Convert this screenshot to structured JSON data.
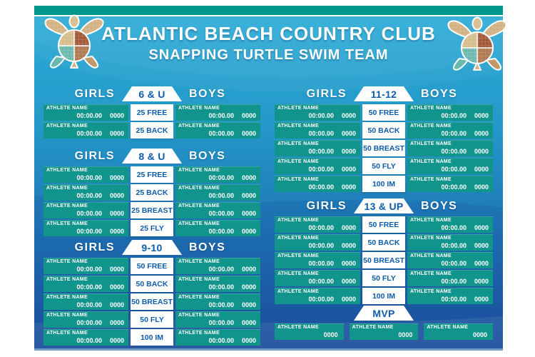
{
  "header": {
    "title": "ATLANTIC BEACH COUNTRY CLUB",
    "subtitle": "SNAPPING TURTLE SWIM TEAM",
    "logo_left": "sea-turtle-mosaic",
    "logo_right": "sea-turtle-mosaic"
  },
  "colors": {
    "top_strip": "#00968e",
    "background_top": "#2cabd6",
    "background_bottom": "#1d509f",
    "record_slot_teal": "#11948c",
    "event_text_blue": "#0d5cac",
    "header_text": "#ffffff"
  },
  "sections": [
    {
      "age_label": "6 & U",
      "girls_label": "GIRLS",
      "boys_label": "BOYS",
      "rows": [
        {
          "event": "25 FREE",
          "girls": {
            "name": "ATHLETE NAME",
            "time": "00:00.00",
            "year": "0000"
          },
          "boys": {
            "name": "ATHLETE NAME",
            "time": "00:00.00",
            "year": "0000"
          }
        },
        {
          "event": "25 BACK",
          "girls": {
            "name": "ATHLETE NAME",
            "time": "00:00.00",
            "year": "0000"
          },
          "boys": {
            "name": "ATHLETE NAME",
            "time": "00:00.00",
            "year": "0000"
          }
        }
      ]
    },
    {
      "age_label": "8 & U",
      "girls_label": "GIRLS",
      "boys_label": "BOYS",
      "rows": [
        {
          "event": "25 FREE",
          "girls": {
            "name": "ATHLETE NAME",
            "time": "00:00.00",
            "year": "0000"
          },
          "boys": {
            "name": "ATHLETE NAME",
            "time": "00:00.00",
            "year": "0000"
          }
        },
        {
          "event": "25 BACK",
          "girls": {
            "name": "ATHLETE NAME",
            "time": "00:00.00",
            "year": "0000"
          },
          "boys": {
            "name": "ATHLETE NAME",
            "time": "00:00.00",
            "year": "0000"
          }
        },
        {
          "event": "25 BREAST",
          "girls": {
            "name": "ATHLETE NAME",
            "time": "00:00.00",
            "year": "0000"
          },
          "boys": {
            "name": "ATHLETE NAME",
            "time": "00:00.00",
            "year": "0000"
          }
        },
        {
          "event": "25 FLY",
          "girls": {
            "name": "ATHLETE NAME",
            "time": "00:00.00",
            "year": "0000"
          },
          "boys": {
            "name": "ATHLETE NAME",
            "time": "00:00.00",
            "year": "0000"
          }
        }
      ]
    },
    {
      "age_label": "9-10",
      "girls_label": "GIRLS",
      "boys_label": "BOYS",
      "rows": [
        {
          "event": "50 FREE",
          "girls": {
            "name": "ATHLETE NAME",
            "time": "00:00.00",
            "year": "0000"
          },
          "boys": {
            "name": "ATHLETE NAME",
            "time": "00:00.00",
            "year": "0000"
          }
        },
        {
          "event": "50 BACK",
          "girls": {
            "name": "ATHLETE NAME",
            "time": "00:00.00",
            "year": "0000"
          },
          "boys": {
            "name": "ATHLETE NAME",
            "time": "00:00.00",
            "year": "0000"
          }
        },
        {
          "event": "50 BREAST",
          "girls": {
            "name": "ATHLETE NAME",
            "time": "00:00.00",
            "year": "0000"
          },
          "boys": {
            "name": "ATHLETE NAME",
            "time": "00:00.00",
            "year": "0000"
          }
        },
        {
          "event": "50 FLY",
          "girls": {
            "name": "ATHLETE NAME",
            "time": "00:00.00",
            "year": "0000"
          },
          "boys": {
            "name": "ATHLETE NAME",
            "time": "00:00.00",
            "year": "0000"
          }
        },
        {
          "event": "100 IM",
          "girls": {
            "name": "ATHLETE NAME",
            "time": "00:00.00",
            "year": "0000"
          },
          "boys": {
            "name": "ATHLETE NAME",
            "time": "00:00.00",
            "year": "0000"
          }
        }
      ]
    },
    {
      "age_label": "11-12",
      "girls_label": "GIRLS",
      "boys_label": "BOYS",
      "rows": [
        {
          "event": "50 FREE",
          "girls": {
            "name": "ATHLETE NAME",
            "time": "00:00.00",
            "year": "0000"
          },
          "boys": {
            "name": "ATHLETE NAME",
            "time": "00:00.00",
            "year": "0000"
          }
        },
        {
          "event": "50 BACK",
          "girls": {
            "name": "ATHLETE NAME",
            "time": "00:00.00",
            "year": "0000"
          },
          "boys": {
            "name": "ATHLETE NAME",
            "time": "00:00.00",
            "year": "0000"
          }
        },
        {
          "event": "50 BREAST",
          "girls": {
            "name": "ATHLETE NAME",
            "time": "00:00.00",
            "year": "0000"
          },
          "boys": {
            "name": "ATHLETE NAME",
            "time": "00:00.00",
            "year": "0000"
          }
        },
        {
          "event": "50 FLY",
          "girls": {
            "name": "ATHLETE NAME",
            "time": "00:00.00",
            "year": "0000"
          },
          "boys": {
            "name": "ATHLETE NAME",
            "time": "00:00.00",
            "year": "0000"
          }
        },
        {
          "event": "100 IM",
          "girls": {
            "name": "ATHLETE NAME",
            "time": "00:00.00",
            "year": "0000"
          },
          "boys": {
            "name": "ATHLETE NAME",
            "time": "00:00.00",
            "year": "0000"
          }
        }
      ]
    },
    {
      "age_label": "13 & UP",
      "girls_label": "GIRLS",
      "boys_label": "BOYS",
      "rows": [
        {
          "event": "50 FREE",
          "girls": {
            "name": "ATHLETE NAME",
            "time": "00:00.00",
            "year": "0000"
          },
          "boys": {
            "name": "ATHLETE NAME",
            "time": "00:00.00",
            "year": "0000"
          }
        },
        {
          "event": "50 BACK",
          "girls": {
            "name": "ATHLETE NAME",
            "time": "00:00.00",
            "year": "0000"
          },
          "boys": {
            "name": "ATHLETE NAME",
            "time": "00:00.00",
            "year": "0000"
          }
        },
        {
          "event": "50 BREAST",
          "girls": {
            "name": "ATHLETE NAME",
            "time": "00:00.00",
            "year": "0000"
          },
          "boys": {
            "name": "ATHLETE NAME",
            "time": "00:00.00",
            "year": "0000"
          }
        },
        {
          "event": "50 FLY",
          "girls": {
            "name": "ATHLETE NAME",
            "time": "00:00.00",
            "year": "0000"
          },
          "boys": {
            "name": "ATHLETE NAME",
            "time": "00:00.00",
            "year": "0000"
          }
        },
        {
          "event": "100 IM",
          "girls": {
            "name": "ATHLETE NAME",
            "time": "00:00.00",
            "year": "0000"
          },
          "boys": {
            "name": "ATHLETE NAME",
            "time": "00:00.00",
            "year": "0000"
          }
        }
      ]
    }
  ],
  "mvp": {
    "label": "MVP",
    "entries": [
      {
        "name": "ATHLETE NAME",
        "year": "0000"
      },
      {
        "name": "ATHLETE NAME",
        "year": "0000"
      },
      {
        "name": "ATHLETE NAME",
        "year": "0000"
      }
    ]
  }
}
